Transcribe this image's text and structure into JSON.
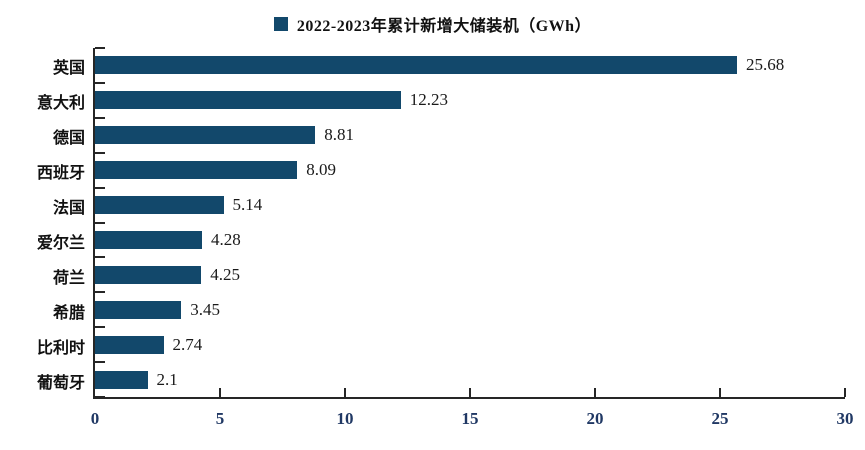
{
  "legend": {
    "label": "2022-2023年累计新增大储装机（GWh）"
  },
  "colors": {
    "bar": "#12486B",
    "axis": "#262626",
    "value_label": "#1a1a1a",
    "tick_label": "#203864"
  },
  "chart_data": {
    "type": "bar",
    "orientation": "horizontal",
    "title": "2022-2023年累计新增大储装机（GWh）",
    "legend_position": "top-center",
    "grid": false,
    "categories": [
      "英国",
      "意大利",
      "德国",
      "西班牙",
      "法国",
      "爱尔兰",
      "荷兰",
      "希腊",
      "比利时",
      "葡萄牙"
    ],
    "values": [
      25.68,
      12.23,
      8.81,
      8.09,
      5.14,
      4.28,
      4.25,
      3.45,
      2.74,
      2.1
    ],
    "value_labels": [
      "25.68",
      "12.23",
      "8.81",
      "8.09",
      "5.14",
      "4.28",
      "4.25",
      "3.45",
      "2.74",
      "2.1"
    ],
    "xlim": [
      0,
      30
    ],
    "x_ticks": [
      "0",
      "5",
      "10",
      "15",
      "20",
      "25",
      "30"
    ]
  }
}
